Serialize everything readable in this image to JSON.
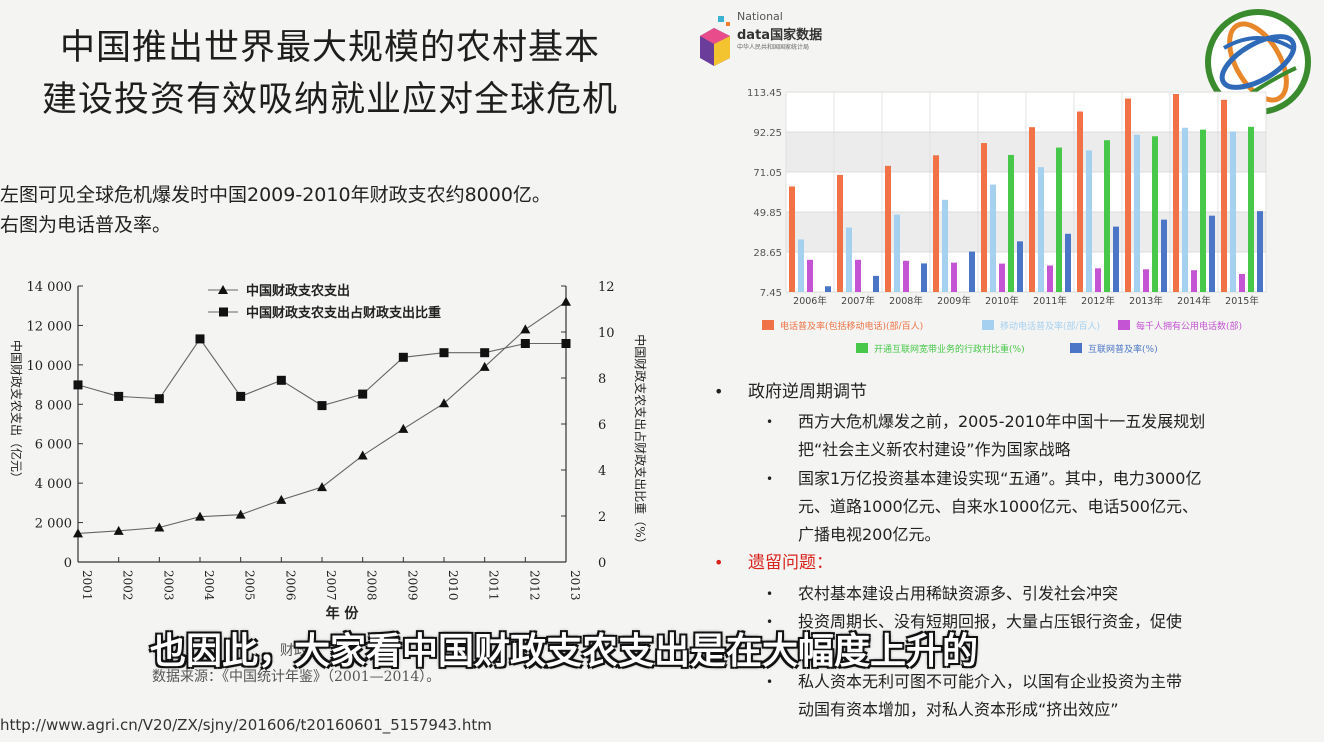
{
  "title": {
    "line1": "中国推出世界最大规模的农村基本",
    "line2": "建设投资有效吸纳就业应对全球危机"
  },
  "intro": {
    "line1": "左图可见全球危机爆发时中国2009-2010年财政支农约8000亿。",
    "line2": "右图为电话普及率。"
  },
  "logo": {
    "line1": "National",
    "line2": "data国家数据",
    "line3": "中华人民共和国国家统计局"
  },
  "bullets": {
    "h1": "政府逆周期调节",
    "h1_items": [
      "西方大危机爆发之前，2005-2010年中国十一五发展规划",
      "把“社会主义新农村建设”作为国家战略",
      "国家1万亿投资基本建设实现“五通”。其中，电力3000亿",
      "元、道路1000亿元、自来水1000亿元、电话500亿元、",
      "广播电视200亿元。"
    ],
    "h2": "遗留问题：",
    "h2_items": [
      "农村基本建设占用稀缺资源多、引发社会冲突",
      "投资周期长、没有短期回报，大量占压银行资金，促使",
      "私人资本无利可图不可能介入，以国有企业投资为主带",
      "动国有资本增加，对私人资本形成“挤出效应”"
    ]
  },
  "subtitle": "也因此，大家看中国财政支农支出是在大幅度上升的",
  "source_fragment": "财政",
  "source_line": "数据来源：《中国统计年鉴》（2001—2014）。",
  "url": "http://www.agri.cn/V20/ZX/sjny/201606/t20160601_5157943.htm",
  "chart_data": [
    {
      "type": "line",
      "x": [
        "2001",
        "2002",
        "2003",
        "2004",
        "2005",
        "2006",
        "2007",
        "2008",
        "2009",
        "2010",
        "2011",
        "2012",
        "2013"
      ],
      "xlabel": "年 份",
      "ylabel": "中国财政支农支出（亿元）",
      "y2label": "中国财政支农支出占财政支出比重（%）",
      "ylim": [
        0,
        14000
      ],
      "y_ticks": [
        "0",
        "2 000",
        "4 000",
        "6 000",
        "8 000",
        "10 000",
        "12 000",
        "14 000"
      ],
      "y2lim": [
        0,
        12
      ],
      "y2_ticks": [
        "0",
        "2",
        "4",
        "6",
        "8",
        "10",
        "12"
      ],
      "series": [
        {
          "name": "中国财政支农支出",
          "marker": "triangle",
          "axis": "left",
          "values": [
            1450,
            1580,
            1750,
            2300,
            2400,
            3150,
            3800,
            5400,
            6750,
            8050,
            9900,
            11800,
            13200
          ]
        },
        {
          "name": "中国财政支农支出占财政支出比重",
          "marker": "square",
          "axis": "right",
          "values": [
            7.7,
            7.2,
            7.1,
            9.7,
            7.2,
            7.9,
            6.8,
            7.3,
            8.9,
            9.1,
            9.1,
            9.5,
            9.5
          ]
        }
      ],
      "grid": false,
      "legend": "top-center"
    },
    {
      "type": "bar",
      "categories": [
        "2006年",
        "2007年",
        "2008年",
        "2009年",
        "2010年",
        "2011年",
        "2012年",
        "2013年",
        "2014年",
        "2015年"
      ],
      "ylim": [
        7.45,
        113.45
      ],
      "y_ticks": [
        "7.45",
        "28.65",
        "49.85",
        "71.05",
        "92.25",
        "113.45"
      ],
      "series": [
        {
          "name": "电话普及率(包括移动电话)(部/百人)",
          "color": "#f07246",
          "values": [
            63.4,
            69.5,
            74.3,
            79.9,
            86.4,
            94.8,
            103.1,
            110.0,
            112.4,
            109.3
          ]
        },
        {
          "name": "移动电话普及率(部/百人)",
          "color": "#a6d0f0",
          "values": [
            35.3,
            41.6,
            48.5,
            56.3,
            64.4,
            73.6,
            82.5,
            90.8,
            94.5,
            92.5
          ]
        },
        {
          "name": "每千人拥有公用电话数(部)",
          "color": "#c454d4",
          "values": [
            24.5,
            24.5,
            24.0,
            23.0,
            22.5,
            21.5,
            20.0,
            19.5,
            19.0,
            17.0
          ]
        },
        {
          "name": "开通互联网宽带业务的行政村比重(%)",
          "color": "#47c84a",
          "values": [
            null,
            null,
            null,
            null,
            80.1,
            84.0,
            87.9,
            90.0,
            93.5,
            95.0
          ]
        },
        {
          "name": "互联网普及率(%)",
          "color": "#4b76c8",
          "values": [
            10.5,
            16.0,
            22.6,
            28.9,
            34.3,
            38.3,
            42.1,
            45.8,
            47.9,
            50.3
          ]
        }
      ],
      "grid": true,
      "legend": "bottom"
    }
  ]
}
